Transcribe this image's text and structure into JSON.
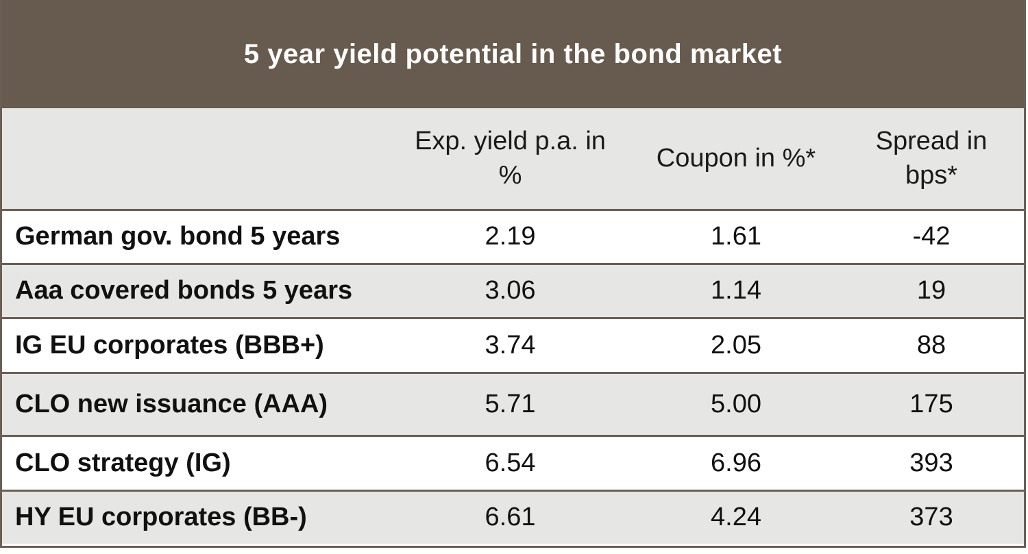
{
  "title": "5 year yield potential in the bond market",
  "columns": [
    "",
    "Exp. yield p.a. in %",
    "Coupon in %*",
    "Spread in bps*"
  ],
  "rows": [
    {
      "name": "German gov. bond 5 years",
      "yield": "2.19",
      "coupon": "1.61",
      "spread": "-42"
    },
    {
      "name": "Aaa covered bonds 5 years",
      "yield": "3.06",
      "coupon": "1.14",
      "spread": "19"
    },
    {
      "name": "IG EU corporates (BBB+)",
      "yield": "3.74",
      "coupon": "2.05",
      "spread": "88"
    },
    {
      "name": "CLO new issuance (AAA)",
      "yield": "5.71",
      "coupon": "5.00",
      "spread": "175"
    },
    {
      "name": "CLO strategy  (IG)",
      "yield": "6.54",
      "coupon": "6.96",
      "spread": "393"
    },
    {
      "name": "HY EU corporates (BB-)",
      "yield": "6.61",
      "coupon": "4.24",
      "spread": "373"
    }
  ],
  "colors": {
    "header_bg": "#675a4e",
    "header_text": "#ffffff",
    "row_alt_bg": "#e6e6e4",
    "border": "#6b5e54"
  }
}
